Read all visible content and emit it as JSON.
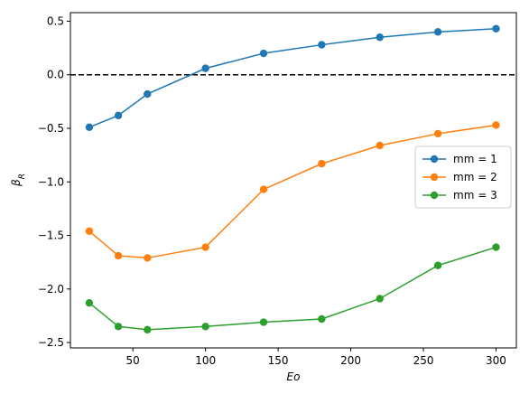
{
  "chart_data": {
    "type": "line",
    "title": "",
    "xlabel": "Eo",
    "ylabel": "β_R",
    "xlim": [
      7,
      314
    ],
    "ylim": [
      -2.55,
      0.58
    ],
    "xticks": [
      50,
      100,
      150,
      200,
      250,
      300
    ],
    "yticks": [
      -2.5,
      -2.0,
      -1.5,
      -1.0,
      -0.5,
      0.0,
      0.5
    ],
    "xtick_labels": [
      "50",
      "100",
      "150",
      "200",
      "250",
      "300"
    ],
    "ytick_labels": [
      "−2.5",
      "−2.0",
      "−1.5",
      "−1.0",
      "−0.5",
      "0.0",
      "0.5"
    ],
    "reference_line": {
      "y": 0.0,
      "style": "dashed",
      "color": "#000000"
    },
    "grid": false,
    "legend_position": "center-right",
    "x": [
      20,
      40,
      60,
      100,
      140,
      180,
      220,
      260,
      300
    ],
    "series": [
      {
        "name": "mm = 1",
        "color": "#1f77b4",
        "values": [
          -0.49,
          -0.38,
          -0.18,
          0.06,
          0.2,
          0.28,
          0.35,
          0.4,
          0.43
        ]
      },
      {
        "name": "mm = 2",
        "color": "#ff7f0e",
        "values": [
          -1.46,
          -1.69,
          -1.71,
          -1.61,
          -1.07,
          -0.83,
          -0.66,
          -0.55,
          -0.47
        ]
      },
      {
        "name": "mm = 3",
        "color": "#2ca02c",
        "values": [
          -2.13,
          -2.35,
          -2.38,
          -2.35,
          -2.31,
          -2.28,
          -2.09,
          -1.78,
          -1.61
        ]
      }
    ]
  }
}
